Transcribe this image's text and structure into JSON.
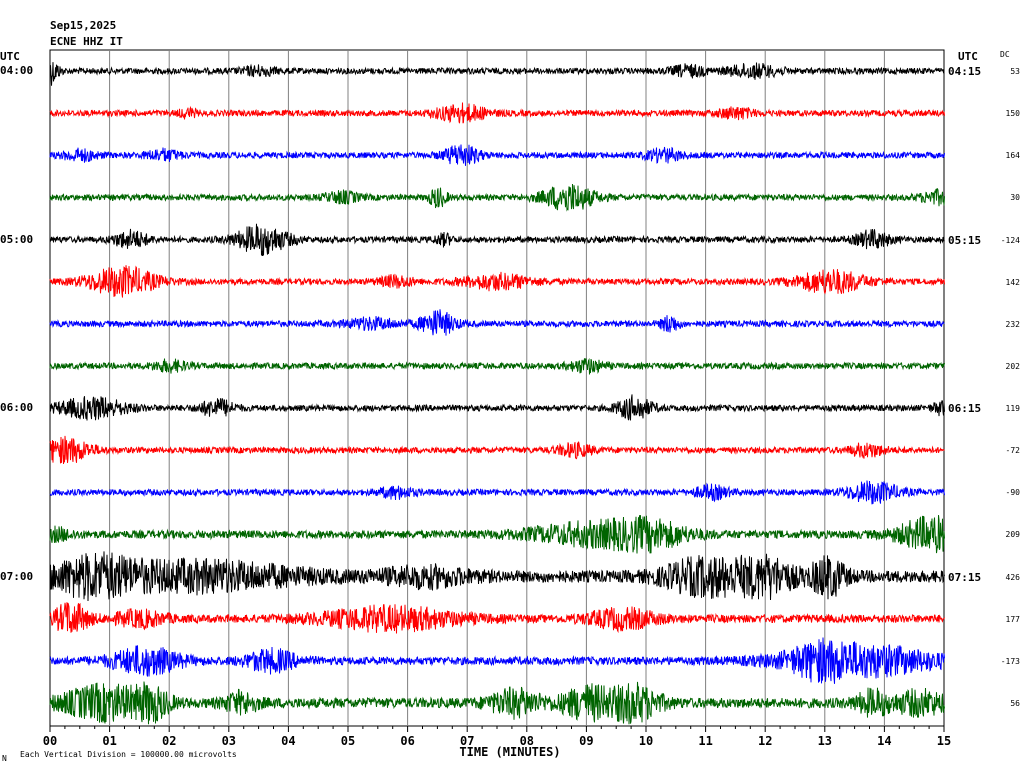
{
  "header": {
    "date": "Sep15,2025",
    "station": "ECNE HHZ IT",
    "utc_left": "UTC",
    "utc_right": "UTC",
    "dc_label": "DC"
  },
  "footer": {
    "mark": "N",
    "scale_note": "Each Vertical Division = 100000.00 microvolts"
  },
  "colors": {
    "black": "#000000",
    "red": "#ff0000",
    "blue": "#0000ff",
    "green": "#006400",
    "grid": "#808080"
  },
  "chart_data": {
    "type": "line",
    "xlabel": "TIME (MINUTES)",
    "xlim": [
      0,
      15
    ],
    "x_ticks": [
      "00",
      "01",
      "02",
      "03",
      "04",
      "05",
      "06",
      "07",
      "08",
      "09",
      "10",
      "11",
      "12",
      "13",
      "14",
      "15"
    ],
    "left_time_labels": [
      {
        "row": 0,
        "label": "04:00"
      },
      {
        "row": 4,
        "label": "05:00"
      },
      {
        "row": 8,
        "label": "06:00"
      },
      {
        "row": 12,
        "label": "07:00"
      }
    ],
    "right_time_labels": [
      {
        "row": 0,
        "label": "04:15"
      },
      {
        "row": 4,
        "label": "05:15"
      },
      {
        "row": 8,
        "label": "06:15"
      },
      {
        "row": 12,
        "label": "07:15"
      }
    ],
    "series": [
      {
        "color": "black",
        "dc": "53",
        "amp": 3,
        "events": [
          [
            0.0,
            12,
            0.1
          ],
          [
            11.8,
            6,
            0.3
          ],
          [
            10.7,
            5,
            0.2
          ],
          [
            3.5,
            4,
            0.2
          ]
        ]
      },
      {
        "color": "red",
        "dc": "150",
        "amp": 3,
        "events": [
          [
            6.9,
            8,
            0.3
          ],
          [
            11.5,
            5,
            0.2
          ],
          [
            2.3,
            4,
            0.1
          ]
        ]
      },
      {
        "color": "blue",
        "dc": "164",
        "amp": 3,
        "events": [
          [
            6.9,
            10,
            0.2
          ],
          [
            10.3,
            6,
            0.2
          ],
          [
            1.9,
            5,
            0.2
          ],
          [
            0.5,
            5,
            0.2
          ]
        ]
      },
      {
        "color": "green",
        "dc": "30",
        "amp": 3,
        "events": [
          [
            8.7,
            13,
            0.3
          ],
          [
            6.5,
            9,
            0.1
          ],
          [
            14.9,
            6,
            0.2
          ],
          [
            4.9,
            5,
            0.2
          ]
        ]
      },
      {
        "color": "black",
        "dc": "-124",
        "amp": 3,
        "events": [
          [
            3.55,
            14,
            0.3
          ],
          [
            1.35,
            8,
            0.2
          ],
          [
            13.8,
            8,
            0.2
          ],
          [
            6.6,
            5,
            0.1
          ]
        ]
      },
      {
        "color": "red",
        "dc": "142",
        "amp": 3,
        "events": [
          [
            1.2,
            14,
            0.4
          ],
          [
            13.1,
            11,
            0.4
          ],
          [
            7.5,
            7,
            0.4
          ],
          [
            5.8,
            5,
            0.2
          ]
        ]
      },
      {
        "color": "blue",
        "dc": "232",
        "amp": 3,
        "events": [
          [
            6.5,
            12,
            0.2
          ],
          [
            10.4,
            8,
            0.1
          ],
          [
            5.4,
            5,
            0.3
          ]
        ]
      },
      {
        "color": "green",
        "dc": "202",
        "amp": 3,
        "events": [
          [
            9.0,
            6,
            0.2
          ],
          [
            2.0,
            5,
            0.2
          ]
        ]
      },
      {
        "color": "black",
        "dc": "119",
        "amp": 3,
        "events": [
          [
            0.7,
            10,
            0.4
          ],
          [
            2.8,
            8,
            0.2
          ],
          [
            9.8,
            11,
            0.2
          ],
          [
            14.95,
            6,
            0.1
          ]
        ]
      },
      {
        "color": "red",
        "dc": "-72",
        "amp": 3,
        "events": [
          [
            0.25,
            12,
            0.3
          ],
          [
            8.8,
            6,
            0.2
          ],
          [
            13.7,
            6,
            0.2
          ]
        ]
      },
      {
        "color": "blue",
        "dc": "-90",
        "amp": 3,
        "events": [
          [
            13.8,
            10,
            0.3
          ],
          [
            11.1,
            6,
            0.2
          ],
          [
            5.8,
            5,
            0.2
          ]
        ]
      },
      {
        "color": "green",
        "dc": "209",
        "amp": 4,
        "events": [
          [
            9.2,
            11,
            0.8
          ],
          [
            10.1,
            9,
            0.4
          ],
          [
            14.8,
            16,
            0.4
          ],
          [
            0.1,
            5,
            0.2
          ]
        ]
      },
      {
        "color": "black",
        "dc": "426",
        "amp": 6,
        "events": [
          [
            0.7,
            16,
            0.5
          ],
          [
            2.5,
            13,
            1.2
          ],
          [
            10.8,
            13,
            0.4
          ],
          [
            11.5,
            11,
            0.4
          ],
          [
            12.1,
            14,
            0.3
          ],
          [
            13.05,
            18,
            0.2
          ],
          [
            6.3,
            8,
            0.5
          ]
        ]
      },
      {
        "color": "red",
        "dc": "177",
        "amp": 4,
        "events": [
          [
            0.35,
            15,
            0.2
          ],
          [
            5.7,
            11,
            0.8
          ],
          [
            9.6,
            9,
            0.4
          ],
          [
            1.5,
            7,
            0.3
          ]
        ]
      },
      {
        "color": "blue",
        "dc": "-173",
        "amp": 4,
        "events": [
          [
            1.6,
            13,
            0.4
          ],
          [
            3.7,
            10,
            0.3
          ],
          [
            13.6,
            15,
            0.9
          ],
          [
            12.9,
            9,
            0.3
          ]
        ]
      },
      {
        "color": "green",
        "dc": "56",
        "amp": 5,
        "events": [
          [
            0.9,
            16,
            0.5
          ],
          [
            1.7,
            13,
            0.2
          ],
          [
            7.8,
            12,
            0.3
          ],
          [
            9.0,
            15,
            0.3
          ],
          [
            9.8,
            17,
            0.3
          ],
          [
            14.6,
            11,
            0.3
          ],
          [
            13.8,
            11,
            0.2
          ],
          [
            3.2,
            9,
            0.2
          ]
        ]
      }
    ]
  }
}
